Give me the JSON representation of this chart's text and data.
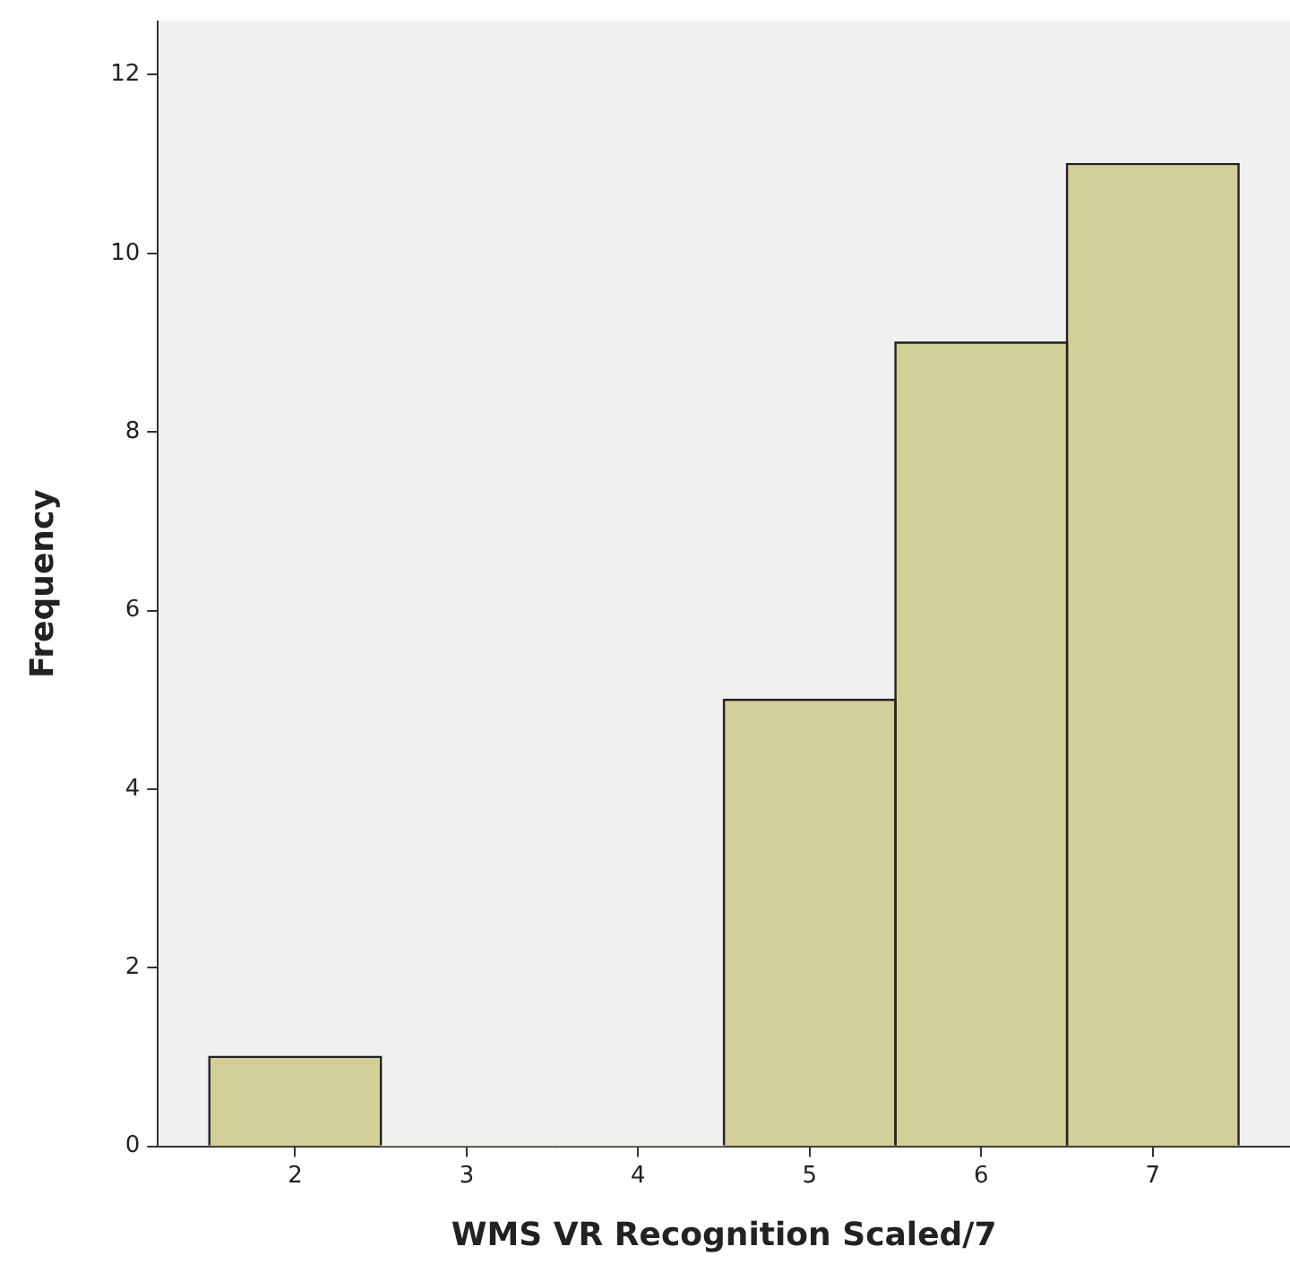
{
  "chart_data": {
    "type": "histogram",
    "xlabel": "WMS VR Recognition Scaled/7",
    "ylabel": "Frequency",
    "bins": [
      1.5,
      2.5,
      3.5,
      4.5,
      5.5,
      6.5,
      7.5
    ],
    "values": [
      1,
      0,
      0,
      5,
      9,
      11
    ],
    "color": "#d3cf98",
    "xlim": [
      1.2,
      7.8
    ],
    "xticks": [
      2,
      3,
      4,
      5,
      6,
      7
    ],
    "ylim": [
      0,
      12.6
    ],
    "yticks": [
      0,
      2,
      4,
      6,
      8,
      10,
      12
    ],
    "grid": false
  }
}
